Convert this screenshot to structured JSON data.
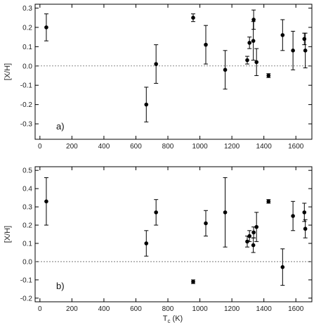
{
  "chart_data": [
    {
      "type": "scatter",
      "panel_label": "a)",
      "ylabel": "[X/H]",
      "xlabel": "",
      "xlim": [
        -30,
        1700
      ],
      "ylim": [
        -0.38,
        0.32
      ],
      "x_ticks": [
        0,
        200,
        400,
        600,
        800,
        1000,
        1200,
        1400,
        1600
      ],
      "y_ticks": [
        -0.3,
        -0.2,
        -0.1,
        0.0,
        0.1,
        0.2,
        0.3
      ],
      "y_tick_labels": [
        "-0.3",
        "-0.2",
        "-0.1",
        "0.0",
        "0.1",
        "0.2",
        "0.3"
      ],
      "zero_line": true,
      "points": [
        {
          "x": 40,
          "y": 0.2,
          "err": 0.07
        },
        {
          "x": 665,
          "y": -0.2,
          "err": 0.09
        },
        {
          "x": 726,
          "y": 0.01,
          "err": 0.1
        },
        {
          "x": 958,
          "y": 0.25,
          "err": 0.02
        },
        {
          "x": 1037,
          "y": 0.11,
          "err": 0.1
        },
        {
          "x": 1158,
          "y": -0.02,
          "err": 0.1
        },
        {
          "x": 1296,
          "y": 0.03,
          "err": 0.02
        },
        {
          "x": 1310,
          "y": 0.12,
          "err": 0.03
        },
        {
          "x": 1334,
          "y": 0.13,
          "err": 0.1
        },
        {
          "x": 1336,
          "y": 0.24,
          "err": 0.05
        },
        {
          "x": 1354,
          "y": 0.02,
          "err": 0.07
        },
        {
          "x": 1429,
          "y": -0.05,
          "err": 0.01
        },
        {
          "x": 1517,
          "y": 0.16,
          "err": 0.08
        },
        {
          "x": 1582,
          "y": 0.08,
          "err": 0.1
        },
        {
          "x": 1653,
          "y": 0.14,
          "err": 0.03
        },
        {
          "x": 1659,
          "y": 0.08,
          "err": 0.09
        }
      ]
    },
    {
      "type": "scatter",
      "panel_label": "b)",
      "ylabel": "[X/H]",
      "xlabel": "T_c (K)",
      "xlabel_main": "T",
      "xlabel_sub": "c",
      "xlabel_unit": " (K)",
      "xlim": [
        -30,
        1700
      ],
      "ylim": [
        -0.22,
        0.52
      ],
      "x_ticks": [
        0,
        200,
        400,
        600,
        800,
        1000,
        1200,
        1400,
        1600
      ],
      "y_ticks": [
        -0.2,
        -0.1,
        0.0,
        0.1,
        0.2,
        0.3,
        0.4,
        0.5
      ],
      "y_tick_labels": [
        "-0.2",
        "-0.1",
        "0.0",
        "0.1",
        "0.2",
        "0.3",
        "0.4",
        "0.5"
      ],
      "zero_line": true,
      "points": [
        {
          "x": 40,
          "y": 0.33,
          "err": 0.13
        },
        {
          "x": 665,
          "y": 0.1,
          "err": 0.07
        },
        {
          "x": 726,
          "y": 0.27,
          "err": 0.07
        },
        {
          "x": 958,
          "y": -0.11,
          "err": 0.01
        },
        {
          "x": 1037,
          "y": 0.21,
          "err": 0.07
        },
        {
          "x": 1158,
          "y": 0.27,
          "err": 0.19
        },
        {
          "x": 1296,
          "y": 0.11,
          "err": 0.03
        },
        {
          "x": 1310,
          "y": 0.14,
          "err": 0.03
        },
        {
          "x": 1334,
          "y": 0.09,
          "err": 0.04
        },
        {
          "x": 1336,
          "y": 0.16,
          "err": 0.03
        },
        {
          "x": 1354,
          "y": 0.19,
          "err": 0.08
        },
        {
          "x": 1429,
          "y": 0.33,
          "err": 0.01
        },
        {
          "x": 1517,
          "y": -0.03,
          "err": 0.1
        },
        {
          "x": 1582,
          "y": 0.25,
          "err": 0.08
        },
        {
          "x": 1653,
          "y": 0.27,
          "err": 0.05
        },
        {
          "x": 1659,
          "y": 0.18,
          "err": 0.05
        }
      ]
    }
  ]
}
